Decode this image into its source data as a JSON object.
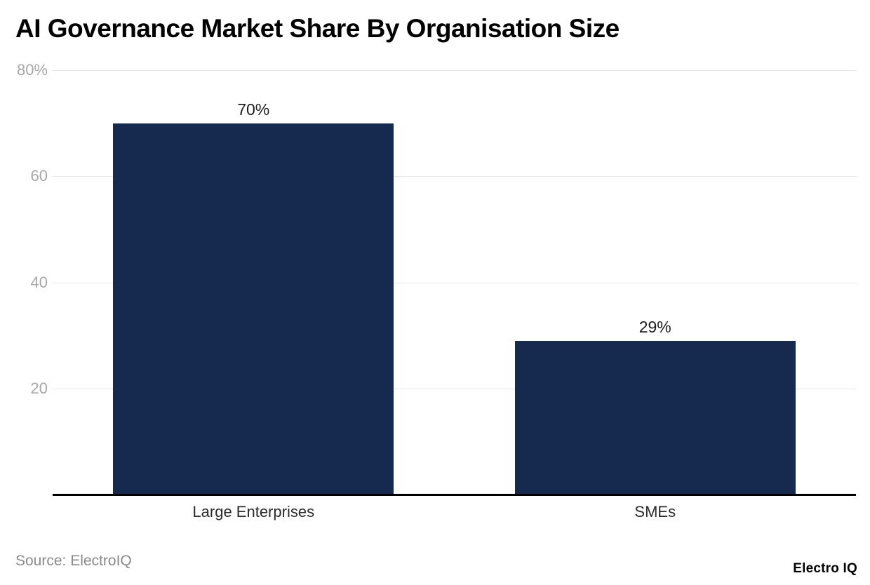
{
  "title": "AI Governance Market Share By Organisation Size",
  "footer": {
    "source": "Source: ElectroIQ",
    "brand": "Electro IQ"
  },
  "chart_data": {
    "type": "bar",
    "title": "AI Governance Market Share By Organisation Size",
    "categories": [
      "Large Enterprises",
      "SMEs"
    ],
    "values": [
      70,
      29
    ],
    "value_labels": [
      "70%",
      "29%"
    ],
    "xlabel": "",
    "ylabel": "",
    "ylim": [
      0,
      80
    ],
    "yticks": [
      {
        "value": 20,
        "label": "20"
      },
      {
        "value": 40,
        "label": "40"
      },
      {
        "value": 60,
        "label": "60"
      },
      {
        "value": 80,
        "label": "80%"
      }
    ],
    "grid": true,
    "legend_position": "none",
    "bar_color": "#16294f",
    "gridline_color": "#e7e7e7",
    "axis_line_color": "#000000"
  }
}
